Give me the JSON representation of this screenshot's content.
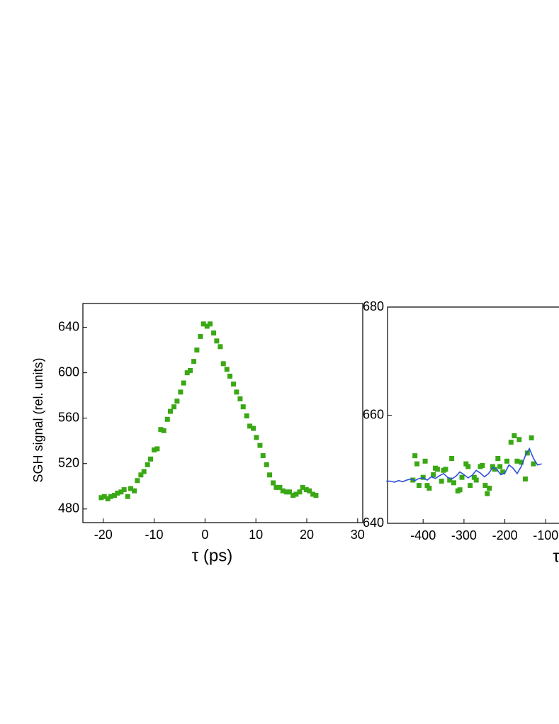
{
  "chart_data": [
    {
      "type": "scatter",
      "y_label": "SGH signal (rel. units)",
      "x_label": "τ (ps)",
      "xlim": [
        -24,
        31
      ],
      "xticks": [
        -20,
        -10,
        0,
        10,
        20,
        30
      ],
      "ylim": [
        468,
        661
      ],
      "yticks": [
        480,
        520,
        560,
        600,
        640
      ],
      "series": [
        {
          "type": "scatter",
          "color": "#3aa815",
          "x": [
            -20.4,
            -19.8,
            -19.1,
            -18.5,
            -17.8,
            -17.2,
            -16.5,
            -15.9,
            -15.2,
            -14.6,
            -13.9,
            -13.3,
            -12.6,
            -12.0,
            -11.3,
            -10.7,
            -10.0,
            -9.4,
            -8.7,
            -8.1,
            -7.4,
            -6.8,
            -6.1,
            -5.5,
            -4.8,
            -4.2,
            -3.5,
            -2.9,
            -2.2,
            -1.6,
            -0.9,
            -0.3,
            0.4,
            1.0,
            1.7,
            2.3,
            3.0,
            3.6,
            4.3,
            4.9,
            5.6,
            6.2,
            6.9,
            7.5,
            8.2,
            8.8,
            9.5,
            10.1,
            10.8,
            11.4,
            12.1,
            12.7,
            13.4,
            14.0,
            14.7,
            15.3,
            16.0,
            16.6,
            17.3,
            17.9,
            18.6,
            19.2,
            19.9,
            20.5,
            21.2,
            21.8
          ],
          "values": [
            490,
            491,
            489,
            491,
            492,
            494,
            495,
            497,
            491,
            498,
            496,
            505,
            510,
            513,
            519,
            524,
            532,
            533,
            550,
            549,
            559,
            566,
            570,
            575,
            583,
            591,
            600,
            602,
            610,
            620,
            632,
            643,
            641,
            643,
            635,
            628,
            623,
            608,
            603,
            597,
            590,
            583,
            577,
            570,
            562,
            553,
            551,
            543,
            536,
            527,
            519,
            510,
            503,
            499,
            499,
            496,
            495,
            495,
            492,
            493,
            495,
            499,
            497,
            496,
            493,
            492
          ]
        }
      ]
    },
    {
      "type": "scatter",
      "x_label": "τ",
      "xlim": [
        -487,
        0
      ],
      "xticks": [
        -400,
        -300,
        -200,
        -100
      ],
      "ylim": [
        640,
        680
      ],
      "yticks": [
        640,
        660,
        680
      ],
      "series": [
        {
          "type": "scatter",
          "color": "#3aa815",
          "x": [
            -425,
            -420,
            -415,
            -410,
            -400,
            -395,
            -390,
            -385,
            -375,
            -370,
            -365,
            -355,
            -350,
            -345,
            -335,
            -330,
            -325,
            -315,
            -310,
            -305,
            -295,
            -290,
            -285,
            -275,
            -270,
            -260,
            -255,
            -248,
            -243,
            -238,
            -230,
            -225,
            -217,
            -212,
            -205,
            -195,
            -185,
            -177,
            -170,
            -165,
            -160,
            -150,
            -145,
            -135,
            -130
          ],
          "values": [
            648,
            652.5,
            651,
            647,
            648.5,
            651.5,
            647,
            646.5,
            649,
            650.2,
            650,
            647.8,
            649.8,
            650,
            648,
            652,
            647.5,
            646,
            646.2,
            648.5,
            651,
            650.5,
            647,
            648.5,
            648,
            650.5,
            650.7,
            647,
            645.5,
            646.5,
            650.5,
            650,
            652,
            650.5,
            649.5,
            651.5,
            655,
            656.2,
            651.5,
            655.5,
            651.3,
            648.2,
            653,
            655.8,
            651
          ]
        },
        {
          "type": "line",
          "color": "#2b4fd8",
          "x": [
            -490,
            -480,
            -470,
            -460,
            -450,
            -440,
            -430,
            -420,
            -410,
            -400,
            -390,
            -380,
            -370,
            -360,
            -350,
            -340,
            -330,
            -320,
            -310,
            -300,
            -290,
            -280,
            -270,
            -260,
            -250,
            -240,
            -230,
            -220,
            -210,
            -200,
            -190,
            -180,
            -170,
            -160,
            -150,
            -140,
            -130,
            -120,
            -110
          ],
          "values": [
            647.8,
            647.8,
            647.6,
            647.9,
            647.7,
            648.0,
            648.2,
            647.9,
            648.3,
            648.4,
            648.0,
            648.6,
            648.3,
            648.8,
            649.2,
            648.5,
            648.2,
            648.7,
            649.5,
            649.0,
            648.4,
            648.9,
            649.8,
            649.3,
            648.6,
            649.2,
            650.3,
            650.0,
            649.0,
            649.3,
            650.8,
            650.2,
            649.2,
            650.5,
            652.5,
            653.8,
            652.0,
            650.8,
            651.0
          ]
        }
      ]
    }
  ]
}
